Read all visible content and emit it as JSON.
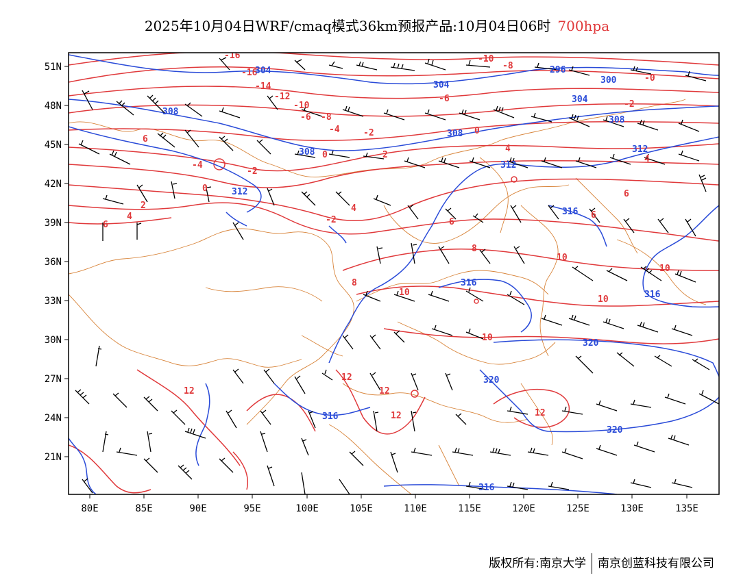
{
  "title": {
    "main": "2025年10月04日WRF/cmaq模式36km预报产品:10月04日06时",
    "level": "700hpa"
  },
  "axes": {
    "lon_labels": [
      "80E",
      "85E",
      "90E",
      "95E",
      "100E",
      "105E",
      "110E",
      "115E",
      "120E",
      "125E",
      "130E",
      "135E"
    ],
    "lat_labels": [
      "51N",
      "48N",
      "45N",
      "42N",
      "39N",
      "36N",
      "33N",
      "30N",
      "27N",
      "24N",
      "21N"
    ]
  },
  "colors": {
    "temperature": "#e0393b",
    "height": "#2a4bd8",
    "border": "#d8843a",
    "barb": "#000000"
  },
  "temperature_labels": [
    "-16",
    "-16",
    "-14",
    "-12",
    "-10",
    "-10",
    "-8",
    "-8",
    "-6",
    "-6",
    "-4",
    "-4",
    "-2",
    "-2",
    "-2",
    "-2",
    "0",
    "0",
    "0",
    "-0",
    "2",
    "2",
    "4",
    "4",
    "4",
    "4",
    "6",
    "6",
    "6",
    "8",
    "8",
    "10",
    "10",
    "10",
    "10",
    "10",
    "12",
    "12",
    "12",
    "12",
    "12",
    "6",
    "6"
  ],
  "height_labels": [
    "304",
    "296",
    "300",
    "304",
    "304",
    "308",
    "308",
    "308",
    "308",
    "312",
    "312",
    "312",
    "316",
    "316",
    "316",
    "316",
    "320",
    "320",
    "320",
    "316"
  ],
  "footer": {
    "left": "版权所有:南京大学",
    "right": "南京创蓝科技有限公司"
  }
}
